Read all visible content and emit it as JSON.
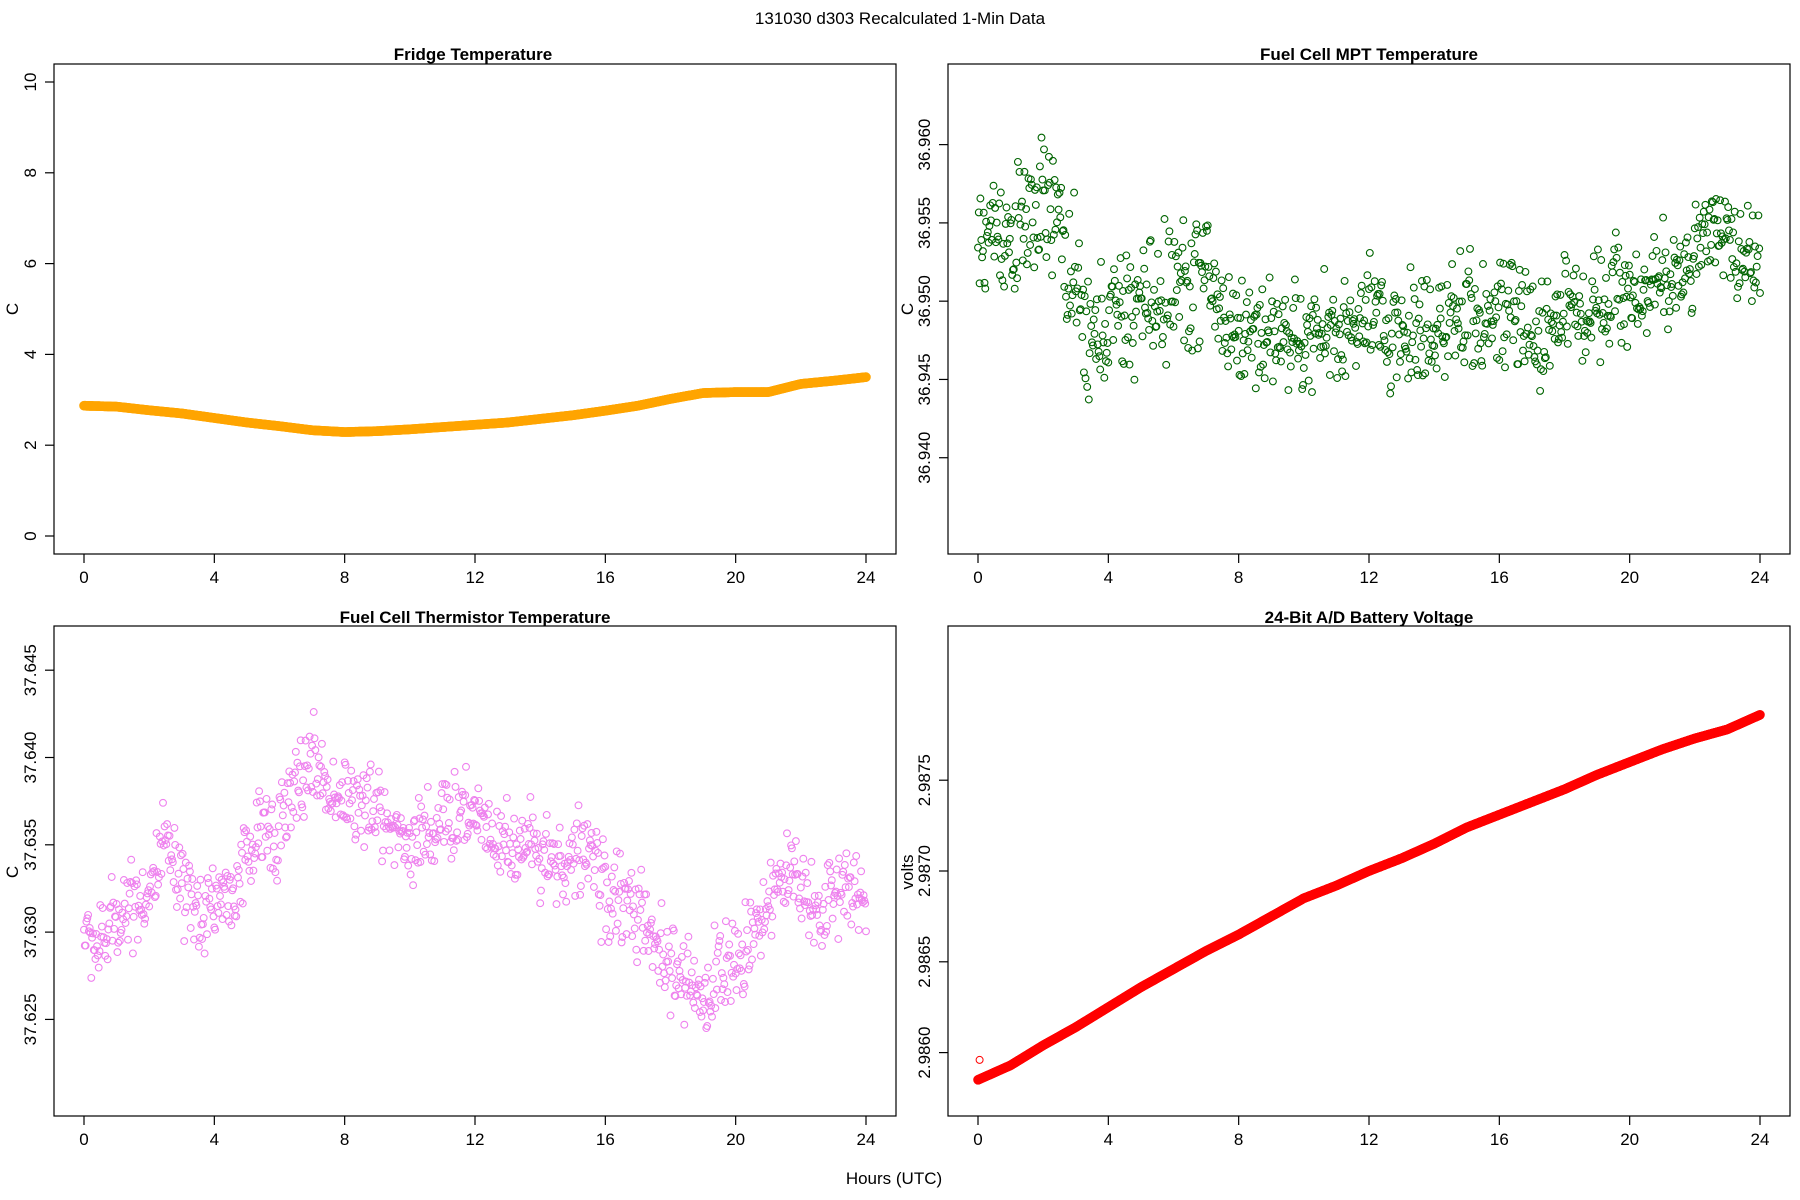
{
  "figure": {
    "suptitle": "131030   d303   Recalculated 1-Min Data",
    "xlabel": "Hours (UTC)"
  },
  "chart_data": [
    {
      "type": "line",
      "title": "Fridge Temperature",
      "ylabel": "C",
      "xlim": [
        0,
        24
      ],
      "ylim": [
        0,
        10
      ],
      "xticks": [
        0,
        4,
        8,
        12,
        16,
        20,
        24
      ],
      "xticklabels": [
        "0",
        "4",
        "8",
        "12",
        "16",
        "20",
        "24"
      ],
      "yticks": [
        0,
        2,
        4,
        6,
        8,
        10
      ],
      "yticklabels": [
        "0",
        "2",
        "4",
        "6",
        "8",
        "10"
      ],
      "marker": "circle",
      "color": "#FFA500",
      "x": [
        0,
        1,
        2,
        3,
        4,
        5,
        6,
        7,
        8,
        9,
        10,
        11,
        12,
        13,
        14,
        15,
        16,
        17,
        18,
        19,
        20,
        21,
        22,
        23,
        24
      ],
      "y": [
        2.87,
        2.85,
        2.77,
        2.7,
        2.6,
        2.5,
        2.42,
        2.33,
        2.29,
        2.31,
        2.35,
        2.4,
        2.45,
        2.5,
        2.58,
        2.66,
        2.76,
        2.87,
        3.02,
        3.15,
        3.17,
        3.17,
        3.35,
        3.42,
        3.5
      ]
    },
    {
      "type": "scatter",
      "title": "Fuel Cell MPT Temperature",
      "ylabel": "C",
      "xlim": [
        0,
        24
      ],
      "ylim": [
        36.935,
        36.964
      ],
      "xticks": [
        0,
        4,
        8,
        12,
        16,
        20,
        24
      ],
      "xticklabels": [
        "0",
        "4",
        "8",
        "12",
        "16",
        "20",
        "24"
      ],
      "yticks": [
        36.94,
        36.945,
        36.95,
        36.955,
        36.96
      ],
      "yticklabels": [
        "36.940",
        "36.945",
        "36.950",
        "36.955",
        "36.960"
      ],
      "marker": "open-circle",
      "color": "#006400",
      "x": [
        0,
        0.5,
        1,
        1.5,
        2,
        2.5,
        3,
        3.5,
        4,
        4.5,
        5,
        5.5,
        6,
        6.5,
        7,
        7.5,
        8,
        8.5,
        9,
        9.5,
        10,
        10.5,
        11,
        11.5,
        12,
        12.5,
        13,
        13.5,
        14,
        14.5,
        15,
        15.5,
        16,
        16.5,
        17,
        17.5,
        18,
        18.5,
        19,
        19.5,
        20,
        20.5,
        21,
        21.5,
        22,
        22.5,
        23,
        23.5,
        24
      ],
      "y": [
        36.953,
        36.955,
        36.954,
        36.955,
        36.956,
        36.955,
        36.95,
        36.947,
        36.949,
        36.949,
        36.95,
        36.95,
        36.951,
        36.951,
        36.952,
        36.949,
        36.948,
        36.948,
        36.948,
        36.948,
        36.947,
        36.948,
        36.948,
        36.948,
        36.949,
        36.948,
        36.948,
        36.948,
        36.949,
        36.948,
        36.949,
        36.949,
        36.949,
        36.949,
        36.948,
        36.948,
        36.95,
        36.949,
        36.95,
        36.951,
        36.95,
        36.951,
        36.951,
        36.952,
        36.953,
        36.954,
        36.954,
        36.953,
        36.953
      ],
      "spread": [
        0.004,
        0.005,
        0.005,
        0.005,
        0.005,
        0.005,
        0.006,
        0.005,
        0.005,
        0.005,
        0.005,
        0.005,
        0.005,
        0.005,
        0.005,
        0.005,
        0.004,
        0.004,
        0.004,
        0.004,
        0.004,
        0.004,
        0.004,
        0.004,
        0.004,
        0.005,
        0.005,
        0.005,
        0.005,
        0.005,
        0.005,
        0.004,
        0.004,
        0.004,
        0.004,
        0.004,
        0.004,
        0.004,
        0.004,
        0.004,
        0.004,
        0.004,
        0.004,
        0.004,
        0.004,
        0.004,
        0.004,
        0.004,
        0.004
      ]
    },
    {
      "type": "scatter",
      "title": "Fuel Cell Thermistor Temperature",
      "ylabel": "C",
      "xlim": [
        0,
        24
      ],
      "ylim": [
        37.6205,
        37.6465
      ],
      "xticks": [
        0,
        4,
        8,
        12,
        16,
        20,
        24
      ],
      "xticklabels": [
        "0",
        "4",
        "8",
        "12",
        "16",
        "20",
        "24"
      ],
      "yticks": [
        37.625,
        37.63,
        37.635,
        37.64,
        37.645
      ],
      "yticklabels": [
        "37.625",
        "37.630",
        "37.635",
        "37.640",
        "37.645"
      ],
      "marker": "open-circle",
      "color": "#EE82EE",
      "x": [
        0,
        0.5,
        1,
        1.5,
        2,
        2.5,
        3,
        3.5,
        4,
        4.5,
        5,
        5.5,
        6,
        6.5,
        7,
        7.5,
        8,
        8.5,
        9,
        9.5,
        10,
        10.5,
        11,
        11.5,
        12,
        12.5,
        13,
        13.5,
        14,
        14.5,
        15,
        15.5,
        16,
        16.5,
        17,
        17.5,
        18,
        18.5,
        19,
        19.5,
        20,
        20.5,
        21,
        21.5,
        22,
        22.5,
        23,
        23.5,
        24
      ],
      "y": [
        37.63,
        37.629,
        37.631,
        37.632,
        37.632,
        37.635,
        37.632,
        37.631,
        37.632,
        37.632,
        37.634,
        37.636,
        37.636,
        37.638,
        37.64,
        37.638,
        37.638,
        37.637,
        37.637,
        37.636,
        37.635,
        37.636,
        37.636,
        37.637,
        37.637,
        37.636,
        37.635,
        37.635,
        37.635,
        37.634,
        37.634,
        37.635,
        37.632,
        37.632,
        37.631,
        37.629,
        37.628,
        37.627,
        37.626,
        37.628,
        37.628,
        37.63,
        37.632,
        37.633,
        37.633,
        37.631,
        37.632,
        37.633,
        37.632
      ],
      "spread": [
        0.002,
        0.003,
        0.003,
        0.003,
        0.003,
        0.003,
        0.003,
        0.003,
        0.003,
        0.003,
        0.003,
        0.003,
        0.003,
        0.003,
        0.003,
        0.003,
        0.003,
        0.003,
        0.003,
        0.003,
        0.003,
        0.003,
        0.003,
        0.003,
        0.003,
        0.003,
        0.003,
        0.003,
        0.003,
        0.003,
        0.003,
        0.003,
        0.003,
        0.003,
        0.003,
        0.003,
        0.003,
        0.003,
        0.003,
        0.003,
        0.003,
        0.003,
        0.003,
        0.003,
        0.003,
        0.003,
        0.003,
        0.003,
        0.003
      ]
    },
    {
      "type": "line",
      "title": "24-Bit A/D Battery Voltage",
      "ylabel": "volts",
      "xlim": [
        0,
        24
      ],
      "ylim": [
        2.98575,
        2.98825
      ],
      "xticks": [
        0,
        4,
        8,
        12,
        16,
        20,
        24
      ],
      "xticklabels": [
        "0",
        "4",
        "8",
        "12",
        "16",
        "20",
        "24"
      ],
      "yticks": [
        2.986,
        2.9865,
        2.987,
        2.9875
      ],
      "yticklabels": [
        "2.9860",
        "2.9865",
        "2.9870",
        "2.9875"
      ],
      "marker": "circle",
      "color": "#FF0000",
      "x": [
        0,
        1,
        2,
        3,
        4,
        5,
        6,
        7,
        8,
        9,
        10,
        11,
        12,
        13,
        14,
        15,
        16,
        17,
        18,
        19,
        20,
        21,
        22,
        23,
        24
      ],
      "y": [
        2.98585,
        2.98593,
        2.98604,
        2.98614,
        2.98625,
        2.98636,
        2.98646,
        2.98656,
        2.98665,
        2.98675,
        2.98685,
        2.98692,
        2.987,
        2.98707,
        2.98715,
        2.98724,
        2.98731,
        2.98738,
        2.98745,
        2.98753,
        2.9876,
        2.98767,
        2.98773,
        2.98778,
        2.98786
      ],
      "outliers": [
        {
          "x": 0.05,
          "y": 2.98596
        }
      ]
    }
  ]
}
